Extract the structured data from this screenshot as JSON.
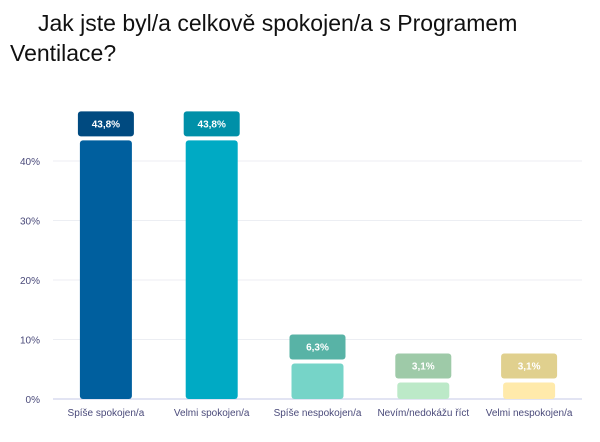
{
  "chart_data": {
    "type": "bar",
    "title": "Jak jste byl/a celkově spokojen/a s Programem Ventilace?",
    "categories": [
      "Spíše spokojen/a",
      "Velmi spokojen/a",
      "Spíše nespokojen/a",
      "Nevím/nedokážu říct",
      "Velmi nespokojen/a"
    ],
    "values": [
      43.8,
      43.8,
      6.3,
      3.1,
      3.1
    ],
    "data_labels": [
      "43,8%",
      "43,8%",
      "6,3%",
      "3,1%",
      "3,1%"
    ],
    "bar_colors": [
      "#005f9e",
      "#00aac4",
      "#76d4c8",
      "#bce9c8",
      "#ffeaab"
    ],
    "label_colors": [
      "#004a80",
      "#0090a8",
      "#58b3a6",
      "#9ecaa8",
      "#e0d08e"
    ],
    "yticks": [
      0,
      10,
      20,
      30,
      40
    ],
    "ytick_labels": [
      "0%",
      "10%",
      "20%",
      "30%",
      "40%"
    ],
    "ylim": [
      0,
      40
    ],
    "xlabel": "",
    "ylabel": "",
    "grid": true,
    "legend": "none"
  }
}
